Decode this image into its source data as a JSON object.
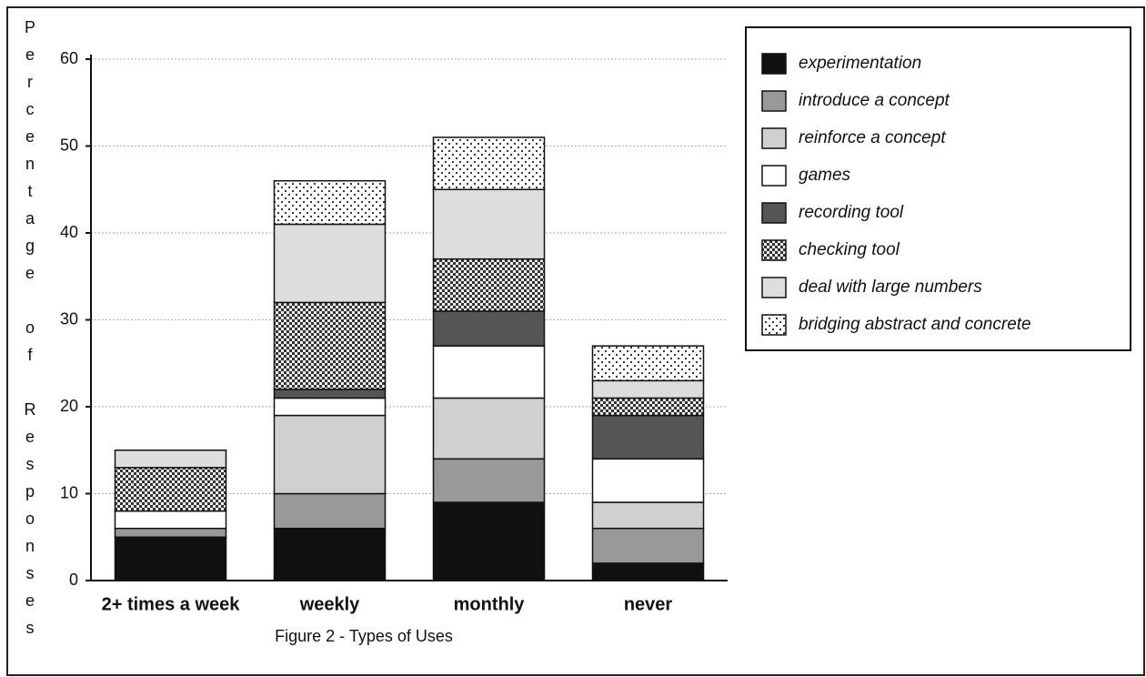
{
  "chart_data": {
    "type": "stacked_bar",
    "title": "Figure 2 - Types of Uses",
    "y_label": "Percentage of Responses",
    "categories": [
      "2+ times a week",
      "weekly",
      "monthly",
      "never"
    ],
    "series": [
      {
        "name": "experimentation",
        "color": "#111111",
        "values": [
          5,
          6,
          9,
          2
        ]
      },
      {
        "name": "introduce a concept",
        "color": "#999999",
        "values": [
          1,
          4,
          5,
          4
        ]
      },
      {
        "name": "reinforce a concept",
        "color": "#d0d0d0",
        "values": [
          0,
          9,
          7,
          3
        ]
      },
      {
        "name": "games",
        "color": "#ffffff",
        "values": [
          2,
          2,
          6,
          5
        ]
      },
      {
        "name": "recording tool",
        "color": "#555555",
        "values": [
          0,
          1,
          4,
          5
        ]
      },
      {
        "name": "checking tool",
        "color": "#888888",
        "pattern": "checker",
        "values": [
          5,
          10,
          6,
          2
        ]
      },
      {
        "name": "deal with large numbers",
        "color": "#dddddd",
        "values": [
          2,
          9,
          8,
          2
        ]
      },
      {
        "name": "bridging abstract and concrete",
        "color": "#444444",
        "pattern": "dots",
        "values": [
          0,
          5,
          6,
          4
        ]
      }
    ],
    "ylim": [
      0,
      60
    ],
    "yticks": [
      0,
      10,
      20,
      30,
      40,
      50,
      60
    ],
    "grid": true
  }
}
